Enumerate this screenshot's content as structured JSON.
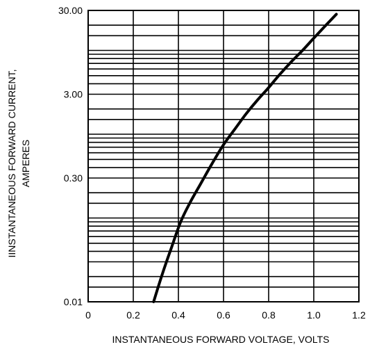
{
  "chart_data": {
    "type": "line",
    "title": "",
    "xlabel": "INSTANTANEOUS FORWARD VOLTAGE, VOLTS",
    "ylabel_lines": [
      "IINSTANTANEOUS FORWARD CURRENT,",
      "AMPERES"
    ],
    "xlim": [
      0,
      1.2
    ],
    "ylim": [
      0.01,
      30.0
    ],
    "yscale": "log",
    "x_ticks": [
      {
        "value": 0,
        "label": "0"
      },
      {
        "value": 0.2,
        "label": "0.2"
      },
      {
        "value": 0.4,
        "label": "0.4"
      },
      {
        "value": 0.6,
        "label": "0.6"
      },
      {
        "value": 0.8,
        "label": "0.8"
      },
      {
        "value": 1.0,
        "label": "1.0"
      },
      {
        "value": 1.2,
        "label": "1.2"
      }
    ],
    "y_ticks": [
      {
        "value": 0.01,
        "label": "0.01"
      },
      {
        "value": 0.3,
        "label": "0.30"
      },
      {
        "value": 3.0,
        "label": "3.00"
      },
      {
        "value": 30.0,
        "label": "30.00"
      }
    ],
    "y_gridlines": [
      0.01,
      0.015,
      0.02,
      0.03,
      0.04,
      0.05,
      0.06,
      0.07,
      0.08,
      0.09,
      0.1,
      0.15,
      0.2,
      0.3,
      0.4,
      0.5,
      0.6,
      0.7,
      0.8,
      0.9,
      1,
      1.5,
      2,
      3,
      4,
      5,
      6,
      7,
      8,
      9,
      10,
      15,
      20,
      30
    ],
    "x_gridlines": [
      0,
      0.2,
      0.4,
      0.6,
      0.8,
      1.0,
      1.2
    ],
    "grid": true,
    "series": [
      {
        "x": [
          0.29,
          0.33,
          0.37,
          0.41,
          0.45,
          0.5,
          0.55,
          0.6,
          0.65,
          0.7,
          0.75,
          0.8,
          0.85,
          0.9,
          0.95,
          1.0,
          1.05,
          1.1
        ],
        "y": [
          0.01,
          0.022,
          0.045,
          0.09,
          0.15,
          0.26,
          0.45,
          0.75,
          1.15,
          1.75,
          2.55,
          3.6,
          5.2,
          7.3,
          10.0,
          14.0,
          19.5,
          27.0
        ]
      }
    ]
  }
}
